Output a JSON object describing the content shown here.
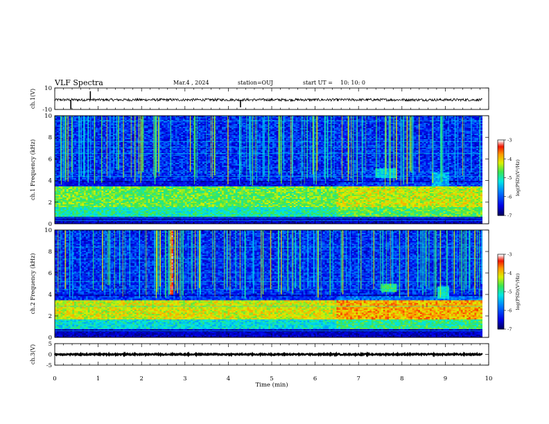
{
  "header": {
    "title": "VLF Spectra",
    "date": "Mar.4 , 2024",
    "station": "station=OUJ",
    "start_label": "start UT =",
    "start_time": "10: 10: 0"
  },
  "chart_data": [
    {
      "type": "line",
      "panel": "ch1-waveform",
      "ylabel": "ch.1(V)",
      "ylim": [
        -10,
        10
      ],
      "yticks": [
        "10",
        "-10"
      ],
      "xlim": [
        0,
        10
      ],
      "series": [
        {
          "values": [],
          "baseline": -1,
          "noise_amplitude": 1.2,
          "spikes": [
            {
              "x": 0.37,
              "y": -9.5
            },
            {
              "x": 0.82,
              "y": 7
            },
            {
              "x": 4.28,
              "y": -8
            }
          ]
        }
      ],
      "color": "#000000"
    },
    {
      "type": "heatmap",
      "panel": "ch1-spectrogram",
      "ylabel": "ch.1 Frequency (kHz)",
      "ylim": [
        0,
        10
      ],
      "yticks": [
        "0",
        "2",
        "4",
        "6",
        "8",
        "10"
      ],
      "xlim": [
        0,
        9.85
      ],
      "colorbar": {
        "label": "log(PSD)(V²/Hz)",
        "range": [
          -7,
          -3
        ],
        "ticks": [
          "-3",
          "-4",
          "-5",
          "-6",
          "-7"
        ]
      },
      "bands": [
        {
          "from_khz": 0.7,
          "to_khz": 1.6,
          "level": -5.0
        },
        {
          "from_khz": 1.6,
          "to_khz": 3.4,
          "level": -4.6
        },
        {
          "from_khz": 3.4,
          "to_khz": 3.8,
          "level": -6.5
        }
      ],
      "features": [
        {
          "x_from": 7.4,
          "x_to": 7.9,
          "khz_from": 4.2,
          "khz_to": 5.1,
          "level": -5.3
        },
        {
          "x_from": 8.7,
          "x_to": 9.1,
          "khz_from": 3.5,
          "khz_to": 4.8,
          "level": -5.5
        }
      ],
      "tones_khz": [
        0.3,
        0.55,
        4.4,
        4.8,
        6.5,
        7.1,
        7.6,
        9.5
      ]
    },
    {
      "type": "heatmap",
      "panel": "ch2-spectrogram",
      "ylabel": "ch.2 Frequency (kHz)",
      "ylim": [
        0,
        10
      ],
      "yticks": [
        "0",
        "2",
        "4",
        "6",
        "8",
        "10"
      ],
      "xlim": [
        0,
        9.85
      ],
      "colorbar": {
        "label": "log(PSD)(V²/Hz)",
        "range": [
          -7,
          -3
        ],
        "ticks": [
          "-3",
          "-4",
          "-5",
          "-6",
          "-7"
        ]
      },
      "bands": [
        {
          "from_khz": 0.8,
          "to_khz": 1.7,
          "level": -5.2
        },
        {
          "from_khz": 1.7,
          "to_khz": 3.4,
          "level": -4.2
        },
        {
          "from_khz": 3.4,
          "to_khz": 3.9,
          "level": -6.2
        }
      ],
      "features": [
        {
          "x_from": 2.65,
          "x_to": 2.75,
          "khz_from": 4.0,
          "khz_to": 10.0,
          "level": -3.4
        },
        {
          "x_from": 7.5,
          "x_to": 7.9,
          "khz_from": 4.2,
          "khz_to": 5.0,
          "level": -4.8
        },
        {
          "x_from": 8.8,
          "x_to": 9.1,
          "khz_from": 3.6,
          "khz_to": 4.8,
          "level": -5.2
        }
      ],
      "tones_khz": [
        0.6,
        1.2,
        2.9,
        4.5,
        5.2,
        6.0,
        7.3,
        8.4
      ]
    },
    {
      "type": "line",
      "panel": "ch3-waveform",
      "ylabel": "ch.3(V)",
      "ylim": [
        -5,
        5
      ],
      "yticks": [
        "5",
        "0",
        "-5"
      ],
      "xlim": [
        0,
        10
      ],
      "series": [
        {
          "values": [],
          "baseline": 0,
          "noise_amplitude": 0.3
        }
      ],
      "color": "#000000"
    }
  ],
  "x_axis": {
    "label": "Time (min)",
    "ticks": [
      "0",
      "1",
      "2",
      "3",
      "4",
      "5",
      "6",
      "7",
      "8",
      "9",
      "10"
    ],
    "range": [
      0,
      10
    ]
  }
}
